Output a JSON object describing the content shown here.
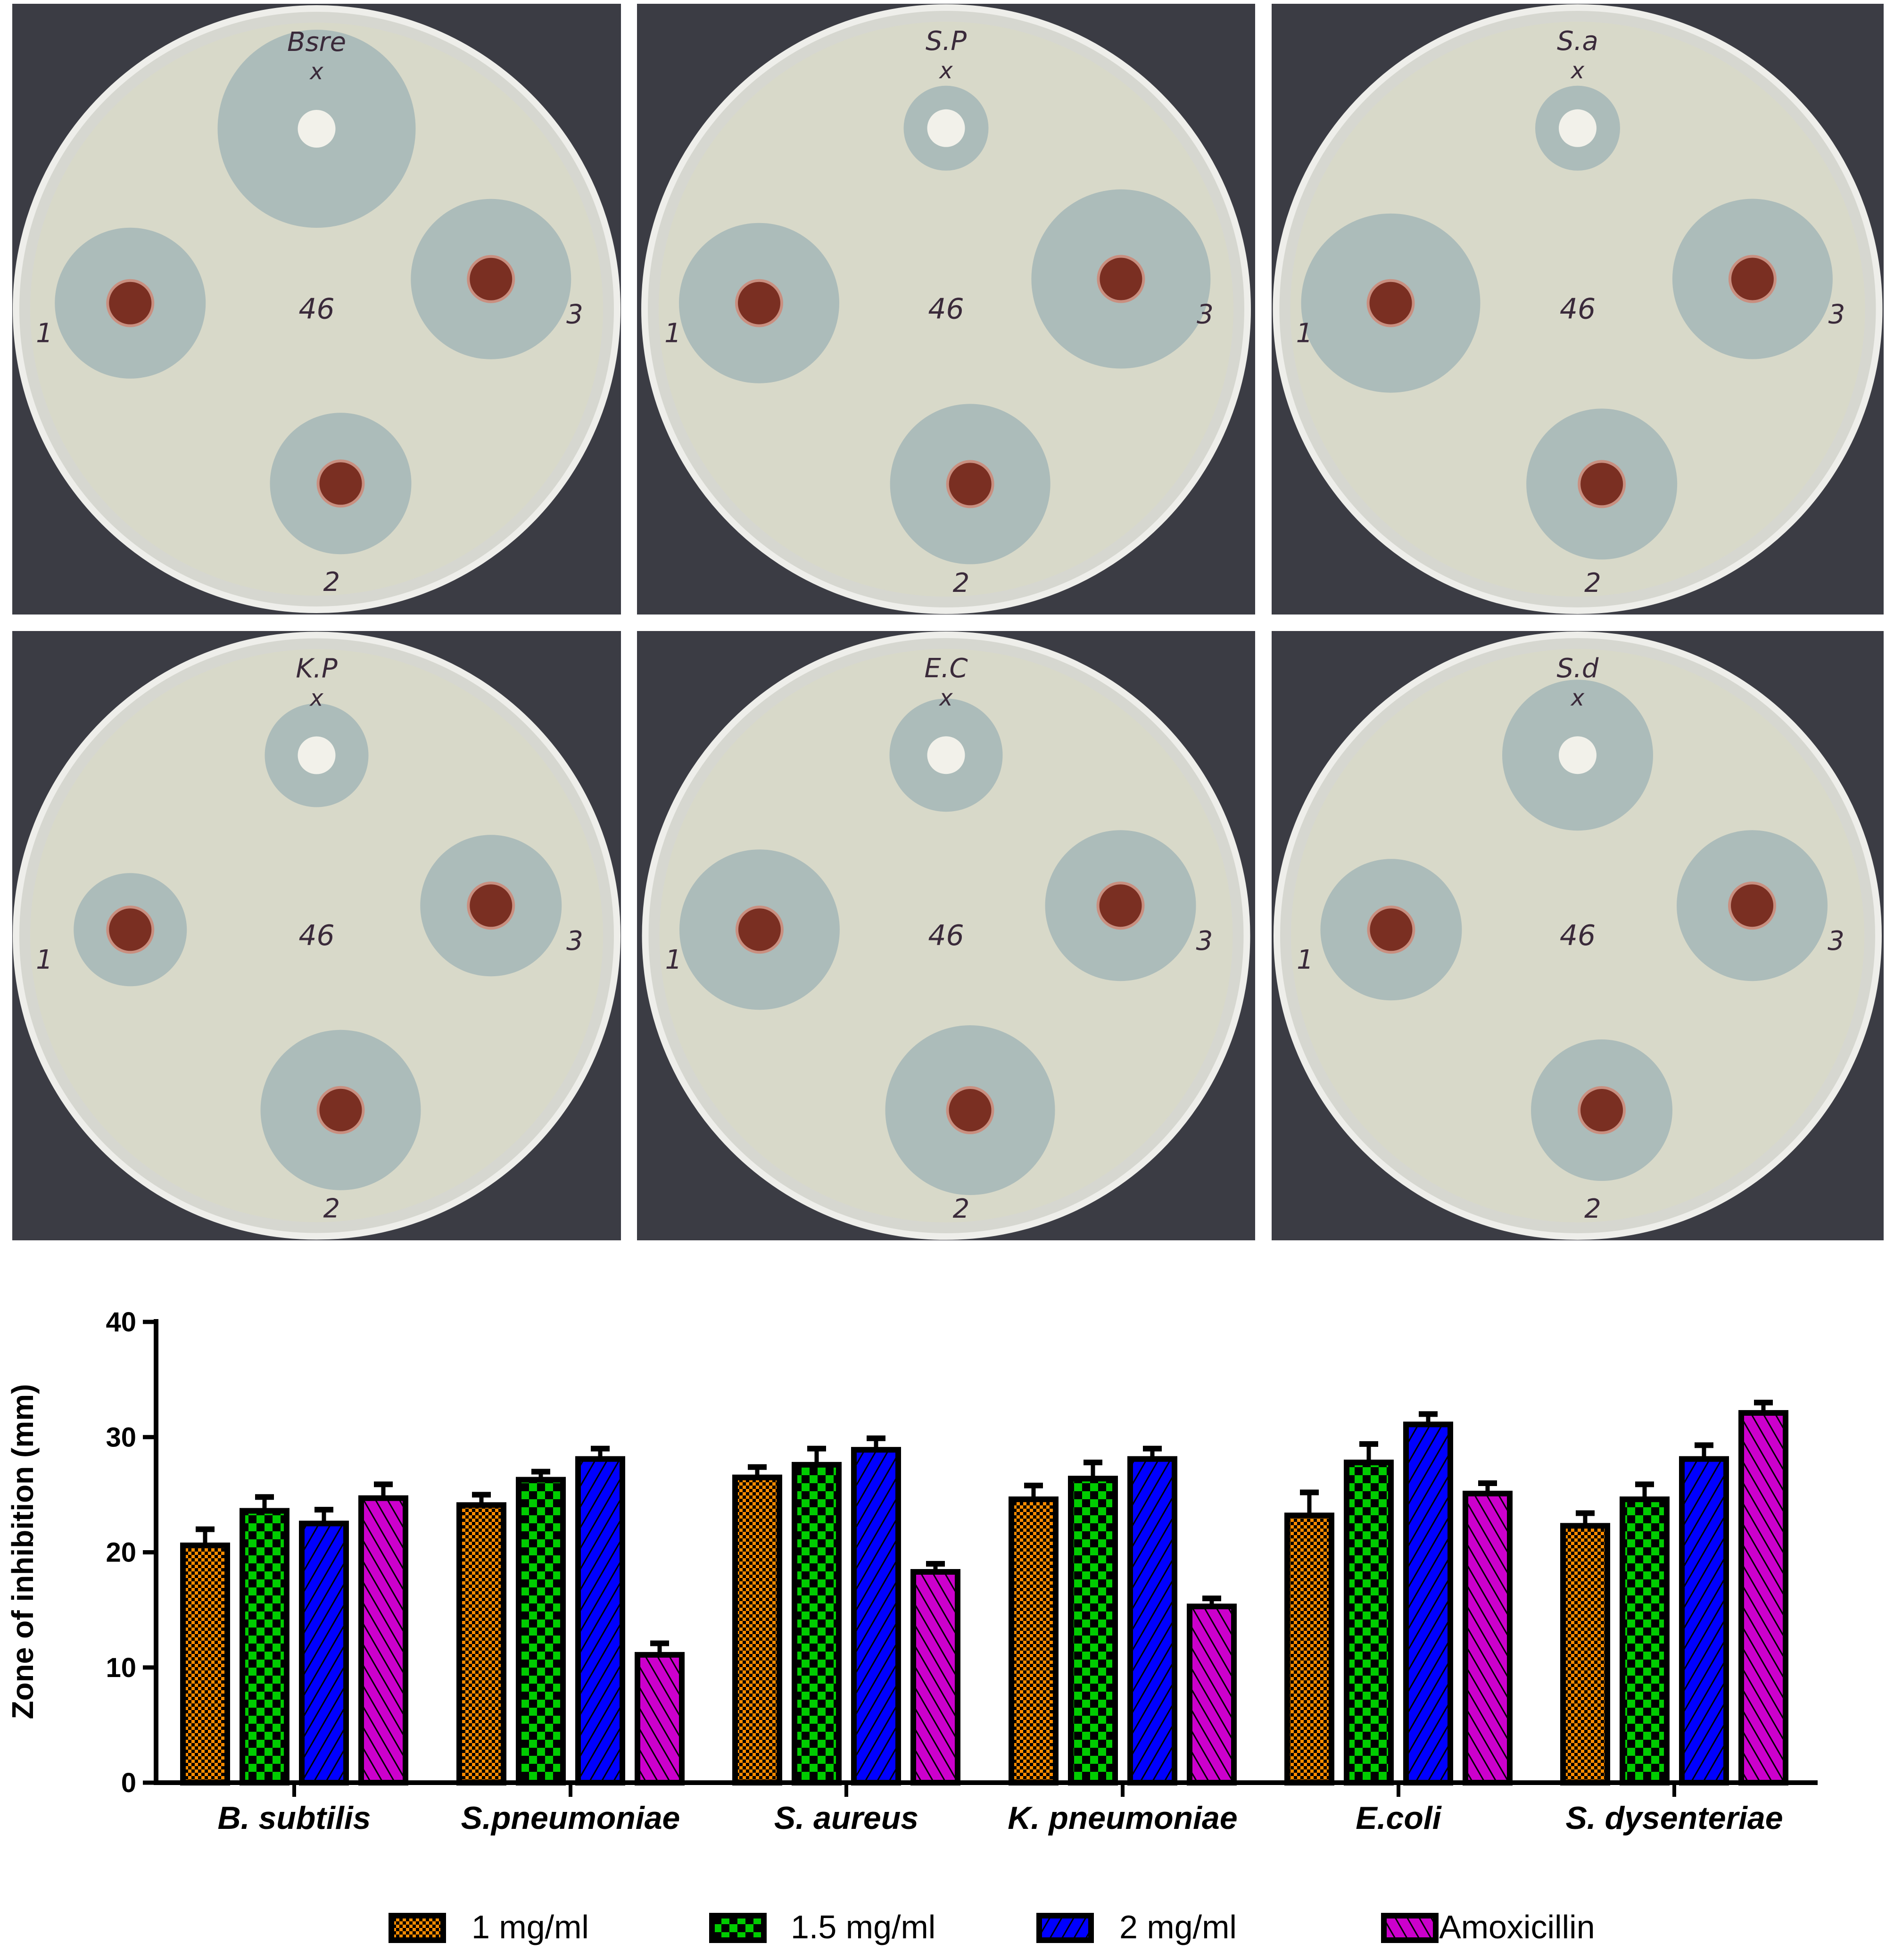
{
  "plates": [
    {
      "label": "Bsre",
      "center_label": "46",
      "well_labels": [
        "1",
        "2",
        "3"
      ],
      "mark": "x"
    },
    {
      "label": "S.P",
      "center_label": "46",
      "well_labels": [
        "1",
        "2",
        "3"
      ],
      "mark": "x"
    },
    {
      "label": "S.a",
      "center_label": "46",
      "well_labels": [
        "1",
        "2",
        "3"
      ],
      "mark": "x"
    },
    {
      "label": "K.P",
      "center_label": "46",
      "well_labels": [
        "1",
        "2",
        "3"
      ],
      "mark": "x"
    },
    {
      "label": "E.C",
      "center_label": "46",
      "well_labels": [
        "1",
        "2",
        "3"
      ],
      "mark": "x"
    },
    {
      "label": "S.d",
      "center_label": "46",
      "well_labels": [
        "1",
        "2",
        "3"
      ],
      "mark": "x"
    }
  ],
  "chart_data": {
    "type": "bar",
    "title": "",
    "xlabel": "",
    "ylabel": "Zone of inhibition (mm)",
    "ylim": [
      0,
      40
    ],
    "yticks": [
      0,
      10,
      20,
      30,
      40
    ],
    "grid": false,
    "legend_placement": "bottom",
    "categories": [
      "B. subtilis",
      "S.pneumoniae",
      "S. aureus",
      "K. pneumoniae",
      "E.coli",
      "S. dysenteriae"
    ],
    "series": [
      {
        "name": "1 mg/ml",
        "color": "#ff8c00",
        "pattern": "fine-checker",
        "values": [
          20.6,
          24.1,
          26.5,
          24.6,
          23.2,
          22.3
        ],
        "errors": [
          1.4,
          0.9,
          0.9,
          1.2,
          2.0,
          1.1
        ]
      },
      {
        "name": "1.5 mg/ml",
        "color": "#00cc00",
        "pattern": "checker",
        "values": [
          23.6,
          26.3,
          27.6,
          26.4,
          27.8,
          24.6
        ],
        "errors": [
          1.2,
          0.7,
          1.4,
          1.4,
          1.6,
          1.3
        ]
      },
      {
        "name": "2 mg/ml",
        "color": "#0000ff",
        "pattern": "forward-diagonal",
        "values": [
          22.5,
          28.1,
          28.9,
          28.1,
          31.1,
          28.1
        ],
        "errors": [
          1.2,
          0.9,
          1.0,
          0.9,
          0.9,
          1.2
        ]
      },
      {
        "name": "Amoxicillin",
        "color": "#cc00cc",
        "pattern": "back-diagonal",
        "values": [
          24.7,
          11.1,
          18.3,
          15.3,
          25.1,
          32.1
        ],
        "errors": [
          1.2,
          1.0,
          0.7,
          0.7,
          0.9,
          0.9
        ]
      }
    ]
  }
}
